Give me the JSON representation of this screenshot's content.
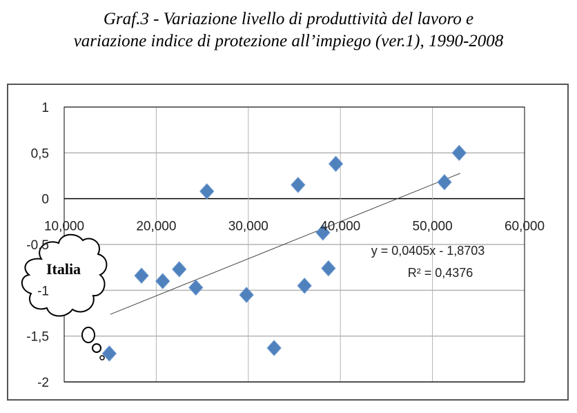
{
  "title_line1": "Graf.3 - Variazione livello di produttività del lavoro e",
  "title_line2": "variazione indice di protezione all’impiego (ver.1), 1990-2008",
  "chart_data": {
    "type": "scatter",
    "title": "Graf.3 - Variazione livello di produttività del lavoro e variazione indice di protezione all’impiego (ver.1), 1990-2008",
    "xlabel": "",
    "ylabel": "",
    "xlim": [
      10000,
      60000
    ],
    "ylim": [
      -2,
      1
    ],
    "x_ticks": [
      10000,
      20000,
      30000,
      40000,
      50000,
      60000
    ],
    "x_tick_labels": [
      "10,000",
      "20,000",
      "30,000",
      "40,000",
      "50,000",
      "60,000"
    ],
    "y_ticks": [
      1,
      0.5,
      0,
      -0.5,
      -1,
      -1.5,
      -2
    ],
    "y_tick_labels": [
      "1",
      "0,5",
      "0",
      "-0,5",
      "-1",
      "-1,5",
      "-2"
    ],
    "grid": true,
    "marker_color": "#4f81bd",
    "points": [
      {
        "x": 14900,
        "y": -1.69
      },
      {
        "x": 18400,
        "y": -0.84
      },
      {
        "x": 20700,
        "y": -0.9
      },
      {
        "x": 22500,
        "y": -0.77
      },
      {
        "x": 24300,
        "y": -0.97
      },
      {
        "x": 25500,
        "y": 0.08
      },
      {
        "x": 29800,
        "y": -1.05
      },
      {
        "x": 32800,
        "y": -1.63
      },
      {
        "x": 35400,
        "y": 0.15
      },
      {
        "x": 36100,
        "y": -0.95
      },
      {
        "x": 38100,
        "y": -0.37
      },
      {
        "x": 38700,
        "y": -0.76
      },
      {
        "x": 39500,
        "y": 0.38
      },
      {
        "x": 51300,
        "y": 0.18
      },
      {
        "x": 52900,
        "y": 0.5
      }
    ],
    "trendline": {
      "slope_per_1000": 0.0405,
      "intercept": -1.8703,
      "x_range": [
        15000,
        53000
      ]
    },
    "equation_label": "y = 0,0405x - 1,8703",
    "r2_label": "R² = 0,4376",
    "annotation": "Italia"
  }
}
